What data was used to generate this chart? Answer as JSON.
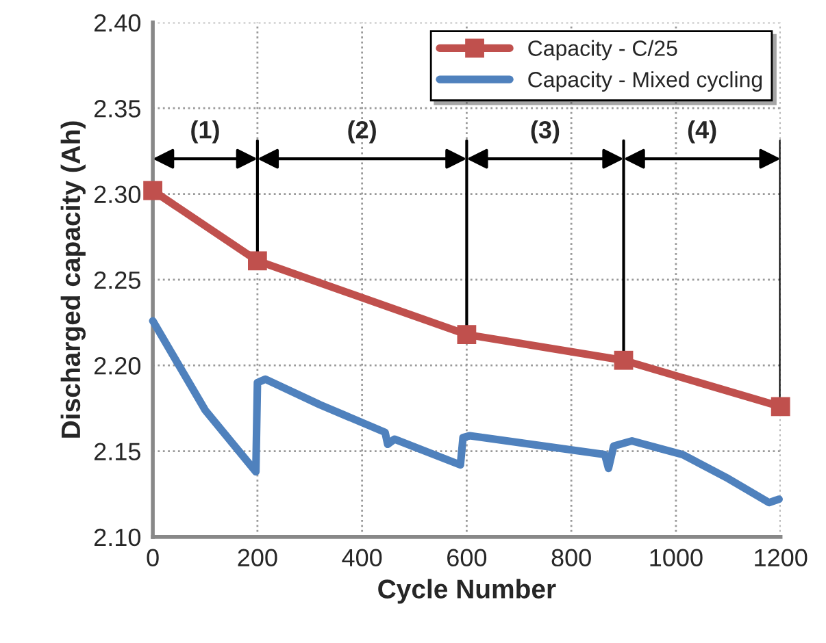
{
  "chart_data": {
    "type": "line",
    "xlabel": "Cycle Number",
    "ylabel": "Discharged capacity (Ah)",
    "series": [
      {
        "name": "Capacity - C/25",
        "color": "#c0504d",
        "marker": "square",
        "x": [
          0,
          200,
          600,
          900,
          1200
        ],
        "values": [
          2.302,
          2.261,
          2.218,
          2.203,
          2.176
        ]
      },
      {
        "name": "Capacity - Mixed cycling",
        "color": "#4f81bd",
        "marker": "none",
        "x": [
          0,
          100,
          197,
          200,
          215,
          320,
          444,
          449,
          462,
          588,
          593,
          606,
          864,
          871,
          881,
          916,
          1013,
          1100,
          1178,
          1197
        ],
        "values": [
          2.226,
          2.174,
          2.138,
          2.19,
          2.192,
          2.177,
          2.161,
          2.154,
          2.157,
          2.142,
          2.158,
          2.159,
          2.148,
          2.14,
          2.153,
          2.156,
          2.148,
          2.134,
          2.12,
          2.122
        ]
      }
    ],
    "annotations": [
      "(1)",
      "(2)",
      "(3)",
      "(4)"
    ],
    "xlim": [
      0,
      1200
    ],
    "xticks": [
      0,
      200,
      400,
      600,
      800,
      1000,
      1200
    ],
    "ylim": [
      2.1,
      2.4
    ],
    "yticks": [
      {
        "value": 2.1,
        "label": "2.10"
      },
      {
        "value": 2.15,
        "label": "2.15"
      },
      {
        "value": 2.2,
        "label": "2.20"
      },
      {
        "value": 2.25,
        "label": "2.25"
      },
      {
        "value": 2.3,
        "label": "2.30"
      },
      {
        "value": 2.35,
        "label": "2.35"
      },
      {
        "value": 2.4,
        "label": "2.40"
      }
    ],
    "grid": true,
    "legend": "top right"
  }
}
